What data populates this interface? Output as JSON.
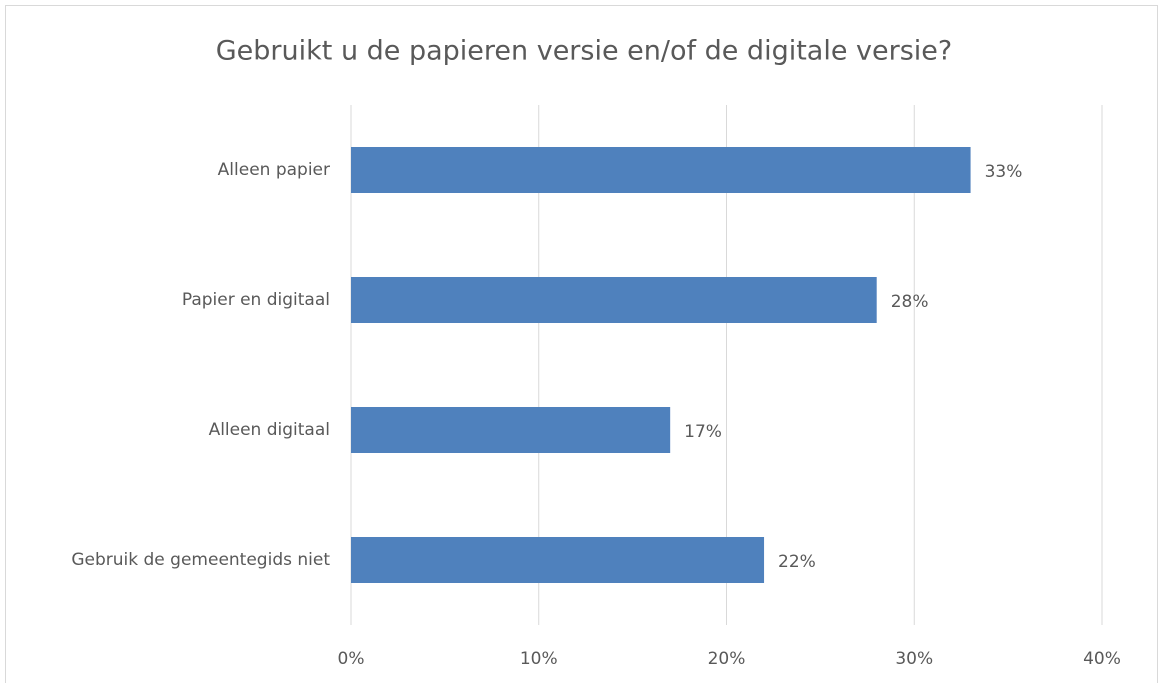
{
  "chart_data": {
    "type": "bar",
    "orientation": "horizontal",
    "title": "Gebruikt u de papieren versie en/of de digitale versie?",
    "categories": [
      "Alleen papier",
      "Papier en digitaal",
      "Alleen digitaal",
      "Gebruik de gemeentegids niet"
    ],
    "values": [
      33,
      28,
      17,
      22
    ],
    "value_labels": [
      "33%",
      "28%",
      "17%",
      "22%"
    ],
    "color": "#4f81bd",
    "xlim": [
      0,
      40
    ],
    "xticks": [
      {
        "value": 0,
        "label": "0%"
      },
      {
        "value": 10,
        "label": "10%"
      },
      {
        "value": 20,
        "label": "20%"
      },
      {
        "value": 30,
        "label": "30%"
      },
      {
        "value": 40,
        "label": "40%"
      }
    ],
    "grid": true
  }
}
